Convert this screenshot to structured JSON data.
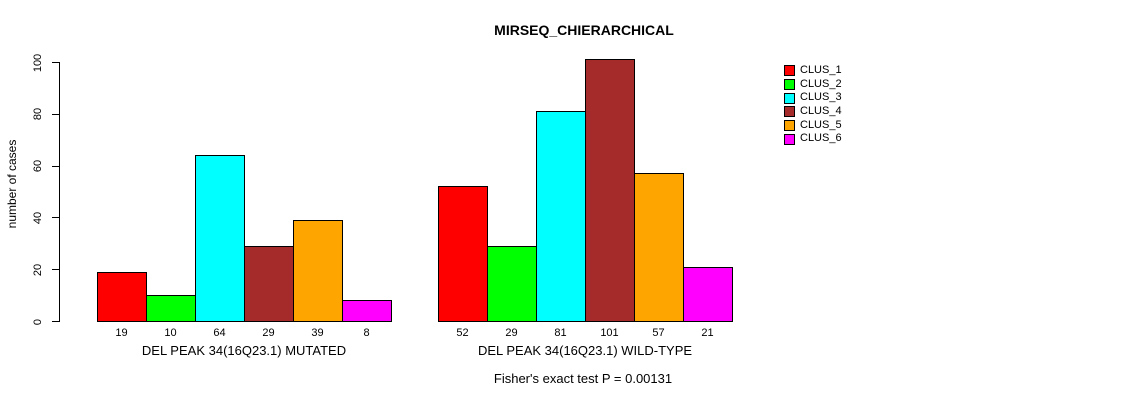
{
  "chart_data": {
    "type": "bar",
    "title": "MIRSEQ_CHIERARCHICAL",
    "ylabel": "number of cases",
    "caption": "Fisher's exact test P = 0.00131",
    "ylim": [
      0,
      100
    ],
    "yticks": [
      0,
      20,
      40,
      60,
      80,
      100
    ],
    "grid": false,
    "legend_position": "right",
    "bar_value_labels_shown": true,
    "categories": [
      "DEL PEAK 34(16Q23.1) MUTATED",
      "DEL PEAK 34(16Q23.1) WILD-TYPE"
    ],
    "series": [
      {
        "name": "CLUS_1",
        "color": "#FF0000",
        "values": [
          19,
          52
        ]
      },
      {
        "name": "CLUS_2",
        "color": "#00FF00",
        "values": [
          10,
          29
        ]
      },
      {
        "name": "CLUS_3",
        "color": "#00FFFF",
        "values": [
          64,
          81
        ]
      },
      {
        "name": "CLUS_4",
        "color": "#A52A2A",
        "values": [
          29,
          101
        ]
      },
      {
        "name": "CLUS_5",
        "color": "#FFA500",
        "values": [
          39,
          57
        ]
      },
      {
        "name": "CLUS_6",
        "color": "#FF00FF",
        "values": [
          8,
          21
        ]
      }
    ]
  }
}
